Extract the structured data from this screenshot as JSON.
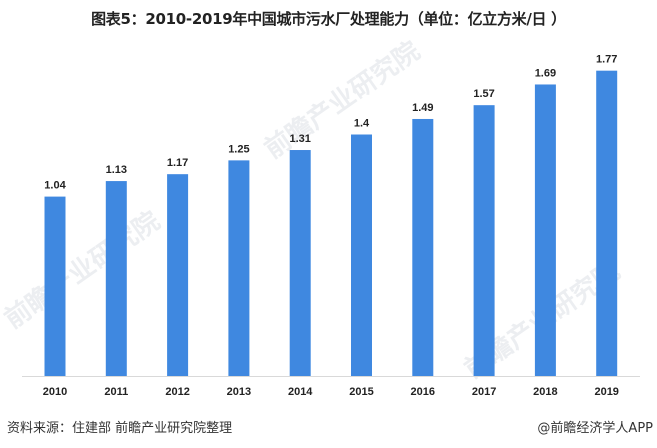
{
  "title": "图表5：2010-2019年中国城市污水厂处理能力（单位：亿立方米/日 ）",
  "source": "资料来源：住建部 前瞻产业研究院整理",
  "brand": "@前瞻经济学人APP",
  "watermark": "前瞻产业研究院",
  "bar_color": "#3f88e0",
  "chart_data": {
    "type": "bar",
    "title": "图表5：2010-2019年中国城市污水厂处理能力（单位：亿立方米/日 ）",
    "categories": [
      "2010",
      "2011",
      "2012",
      "2013",
      "2014",
      "2015",
      "2016",
      "2017",
      "2018",
      "2019"
    ],
    "values": [
      1.04,
      1.13,
      1.17,
      1.25,
      1.31,
      1.4,
      1.49,
      1.57,
      1.69,
      1.77
    ],
    "value_labels": [
      "1.04",
      "1.13",
      "1.17",
      "1.25",
      "1.31",
      "1.4",
      "1.49",
      "1.57",
      "1.69",
      "1.77"
    ],
    "xlabel": "",
    "ylabel": "",
    "ylim": [
      0,
      1.9
    ],
    "grid": false,
    "legend": "none"
  }
}
